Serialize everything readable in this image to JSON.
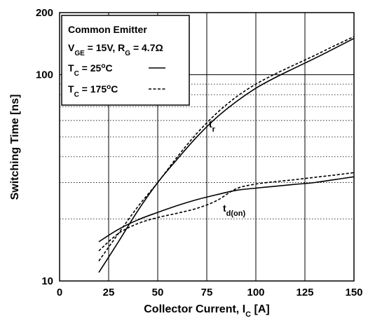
{
  "chart_data": {
    "type": "line",
    "xlabel": "Collector Current, I",
    "xlabel_sub": "C",
    "xlabel_unit": " [A]",
    "ylabel": "Switching Time [ns]",
    "xlim": [
      0,
      150
    ],
    "ylim": [
      10,
      200
    ],
    "yscale": "log",
    "x_ticks": [
      0,
      25,
      50,
      75,
      100,
      125,
      150
    ],
    "y_tick_labels": [
      10,
      100,
      200
    ],
    "grid": true,
    "legend": {
      "position": "top-left",
      "line1": "Common Emitter",
      "line2_parts": [
        "V",
        "GE",
        " = 15V, R",
        "G",
        " = 4.7Ω"
      ],
      "entries": [
        {
          "label_parts": [
            "T",
            "C",
            " = 25",
            "o",
            "C"
          ],
          "style": "solid"
        },
        {
          "label_parts": [
            "T",
            "C",
            " = 175",
            "o",
            "C"
          ],
          "style": "dashed"
        }
      ]
    },
    "curve_labels": [
      {
        "text": "t",
        "sub": "r",
        "series": "tr"
      },
      {
        "text": "t",
        "sub": "d(on)",
        "series": "tdon"
      }
    ],
    "series": [
      {
        "curve": "tr",
        "temp": "25C",
        "style": "solid",
        "x": [
          20,
          30,
          40,
          50,
          60,
          70,
          80,
          90,
          100,
          110,
          120,
          130,
          140,
          150
        ],
        "y": [
          11,
          15.5,
          22,
          30,
          39,
          50,
          62,
          74,
          86,
          97,
          108,
          120,
          134,
          150
        ]
      },
      {
        "curve": "tr",
        "temp": "175C",
        "style": "dashed",
        "x": [
          20,
          30,
          40,
          50,
          60,
          70,
          80,
          90,
          100,
          110,
          120,
          130,
          140,
          150
        ],
        "y": [
          12.5,
          17,
          23,
          30,
          40,
          52,
          65,
          78,
          90,
          101,
          112,
          124,
          138,
          153
        ]
      },
      {
        "curve": "tdon",
        "temp": "25C",
        "style": "solid",
        "x": [
          20,
          30,
          40,
          50,
          60,
          70,
          80,
          90,
          100,
          110,
          120,
          130,
          140,
          150
        ],
        "y": [
          15.5,
          17.8,
          19.8,
          21.5,
          23.2,
          24.8,
          26.2,
          27.5,
          28.2,
          28.8,
          29.4,
          30,
          31,
          32
        ]
      },
      {
        "curve": "tdon",
        "temp": "175C",
        "style": "dashed",
        "x": [
          20,
          30,
          40,
          50,
          60,
          70,
          80,
          90,
          100,
          110,
          120,
          130,
          140,
          150
        ],
        "y": [
          14,
          17,
          19,
          20.3,
          21.3,
          22.5,
          24.5,
          28,
          29.5,
          30.3,
          31,
          31.8,
          32.6,
          33.5
        ]
      }
    ]
  }
}
